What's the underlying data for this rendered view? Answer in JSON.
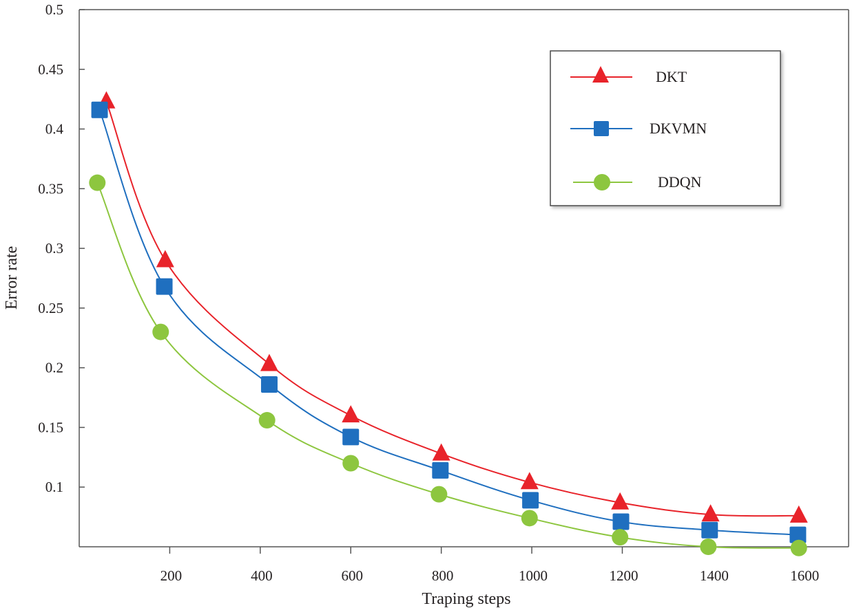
{
  "chart_data": {
    "type": "line",
    "title": "",
    "xlabel": "Traping steps",
    "ylabel": "Error rate",
    "xlim": [
      0,
      1700
    ],
    "ylim": [
      0.05,
      0.5
    ],
    "xticks": [
      200,
      400,
      600,
      800,
      1000,
      1200,
      1400,
      1600
    ],
    "xtick_labels": [
      "200",
      "400",
      "600",
      "800",
      "1000",
      "1200",
      "1400",
      "1600"
    ],
    "yticks": [
      0.1,
      0.15,
      0.2,
      0.25,
      0.3,
      0.35,
      0.4,
      0.45,
      0.5
    ],
    "ytick_labels": [
      "0.1",
      "0.15",
      "0.2",
      "0.25",
      "0.3",
      "0.35",
      "0.4",
      "0.45",
      "0.5"
    ],
    "grid": false,
    "legend_position": "top-right",
    "series": [
      {
        "name": "DKT",
        "marker": "triangle",
        "color": "#e8232a",
        "x": [
          60,
          190,
          420,
          600,
          800,
          995,
          1195,
          1395,
          1590
        ],
        "y": [
          0.423,
          0.29,
          0.203,
          0.16,
          0.128,
          0.104,
          0.087,
          0.077,
          0.076
        ]
      },
      {
        "name": "DKVMN",
        "marker": "square",
        "color": "#1f6fbf",
        "x": [
          45,
          188,
          420,
          600,
          798,
          997,
          1197,
          1393,
          1588
        ],
        "y": [
          0.416,
          0.268,
          0.186,
          0.142,
          0.114,
          0.089,
          0.071,
          0.064,
          0.06
        ]
      },
      {
        "name": "DDQN",
        "marker": "circle",
        "color": "#8dc63f",
        "x": [
          40,
          180,
          415,
          600,
          795,
          995,
          1195,
          1390,
          1590
        ],
        "y": [
          0.355,
          0.23,
          0.156,
          0.12,
          0.094,
          0.074,
          0.058,
          0.05,
          0.049
        ]
      }
    ]
  }
}
